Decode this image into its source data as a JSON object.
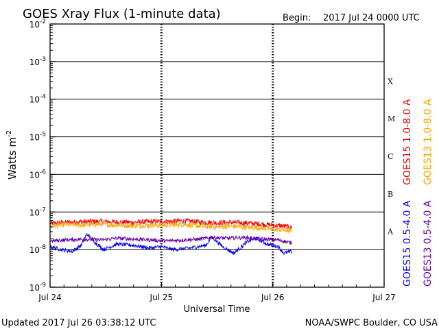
{
  "chart_data": {
    "type": "line",
    "title": "GOES Xray Flux (1-minute data)",
    "begin_label": "Begin:",
    "begin_value": "2017 Jul 24 0000 UTC",
    "xlabel": "Universal Time",
    "ylabel_base": "Watts m",
    "ylabel_exp": "-2",
    "y_scale": "log",
    "ylim": [
      1e-09,
      0.01
    ],
    "xlim": [
      0,
      3
    ],
    "x_ticks": [
      {
        "value": 0,
        "label": "Jul 24"
      },
      {
        "value": 1,
        "label": "Jul 25"
      },
      {
        "value": 2,
        "label": "Jul 26"
      },
      {
        "value": 3,
        "label": "Jul 27"
      }
    ],
    "y_ticks": [
      {
        "exp": -9,
        "label_base": "10",
        "label_exp": "-9"
      },
      {
        "exp": -8,
        "label_base": "10",
        "label_exp": "-8"
      },
      {
        "exp": -7,
        "label_base": "10",
        "label_exp": "-7"
      },
      {
        "exp": -6,
        "label_base": "10",
        "label_exp": "-6"
      },
      {
        "exp": -5,
        "label_base": "10",
        "label_exp": "-5"
      },
      {
        "exp": -4,
        "label_base": "10",
        "label_exp": "-4"
      },
      {
        "exp": -3,
        "label_base": "10",
        "label_exp": "-3"
      },
      {
        "exp": -2,
        "label_base": "10",
        "label_exp": "-2"
      }
    ],
    "flare_classes": [
      {
        "label": "A",
        "exp": -7.5
      },
      {
        "label": "B",
        "exp": -6.5
      },
      {
        "label": "C",
        "exp": -5.5
      },
      {
        "label": "M",
        "exp": -4.5
      },
      {
        "label": "X",
        "exp": -3.5
      }
    ],
    "series": [
      {
        "name": "GOES15 1.0-8.0 A",
        "color": "#ff0000",
        "x": [
          0,
          0.15,
          0.3,
          0.45,
          0.6,
          0.75,
          0.9,
          1.05,
          1.2,
          1.35,
          1.5,
          1.65,
          1.8,
          1.95,
          2.1,
          2.17
        ],
        "y": [
          5e-08,
          5.3e-08,
          5.5e-08,
          5.6e-08,
          5.4e-08,
          5.3e-08,
          5.5e-08,
          5.6e-08,
          5.8e-08,
          5.4e-08,
          5.2e-08,
          5.3e-08,
          5e-08,
          4.6e-08,
          4.2e-08,
          3.8e-08
        ]
      },
      {
        "name": "GOES13 1.0-8.0 A",
        "color": "#ffa500",
        "x": [
          0,
          0.15,
          0.3,
          0.45,
          0.6,
          0.75,
          0.9,
          1.05,
          1.2,
          1.35,
          1.5,
          1.65,
          1.8,
          1.95,
          2.1,
          2.17
        ],
        "y": [
          4.2e-08,
          4.6e-08,
          4.5e-08,
          4.7e-08,
          4.5e-08,
          4.3e-08,
          4.4e-08,
          4.5e-08,
          4.7e-08,
          4.2e-08,
          4e-08,
          4.2e-08,
          3.9e-08,
          3.6e-08,
          3.3e-08,
          3.1e-08
        ]
      },
      {
        "name": "GOES15 0.5-4.0 A",
        "color": "#0000ff",
        "x": [
          0,
          0.1,
          0.2,
          0.28,
          0.33,
          0.4,
          0.48,
          0.6,
          0.75,
          0.9,
          1.0,
          1.1,
          1.25,
          1.4,
          1.45,
          1.55,
          1.65,
          1.78,
          1.85,
          1.95,
          2.05,
          2.1,
          2.17
        ],
        "y": [
          1.2e-08,
          1e-08,
          9e-09,
          1.3e-08,
          2.6e-08,
          1.6e-08,
          1e-08,
          1.4e-08,
          1.3e-08,
          1.1e-08,
          1.2e-08,
          1e-08,
          1.1e-08,
          1.3e-08,
          2.2e-08,
          1.2e-08,
          8e-09,
          1.7e-08,
          2e-08,
          1.4e-08,
          1.2e-08,
          8e-09,
          9e-09
        ]
      },
      {
        "name": "GOES13 0.5-4.0 A",
        "color": "#6600aa",
        "x": [
          0,
          0.15,
          0.3,
          0.45,
          0.6,
          0.75,
          0.9,
          1.05,
          1.2,
          1.35,
          1.45,
          1.6,
          1.75,
          1.9,
          2.05,
          2.17
        ],
        "y": [
          1.7e-08,
          1.8e-08,
          1.9e-08,
          1.8e-08,
          2e-08,
          1.9e-08,
          1.8e-08,
          1.7e-08,
          1.8e-08,
          1.9e-08,
          2.1e-08,
          2e-08,
          2.1e-08,
          1.9e-08,
          1.8e-08,
          1.5e-08
        ]
      }
    ],
    "legend_left": [
      {
        "label": "GOES15 0.5-4.0 A",
        "color": "#0000ff"
      },
      {
        "label": "GOES15 1.0-8.0 A",
        "color": "#ff0000"
      }
    ],
    "legend_right": [
      {
        "label": "GOES13 0.5-4.0 A",
        "color": "#6600aa"
      },
      {
        "label": "GOES13 1.0-8.0 A",
        "color": "#ffa500"
      }
    ],
    "grid": true,
    "legend_position": "right"
  },
  "footer": {
    "updated": "Updated 2017 Jul 26 03:38:12 UTC",
    "credit": "NOAA/SWPC Boulder, CO USA"
  }
}
